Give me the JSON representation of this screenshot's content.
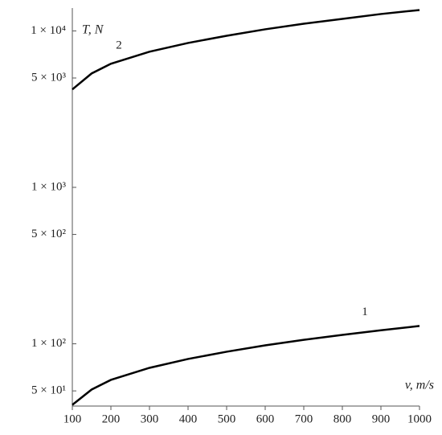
{
  "chart_data": {
    "type": "line",
    "x_label": "v, m/s",
    "y_label": "T, N",
    "x": [
      100,
      150,
      200,
      300,
      400,
      500,
      600,
      700,
      800,
      900,
      1000
    ],
    "series": [
      {
        "name": "1",
        "color": "#000000",
        "values": [
          40.7,
          51,
          58.8,
          70.2,
          80,
          89,
          97.7,
          106,
          114,
          122,
          130
        ]
      },
      {
        "name": "2",
        "color": "#000000",
        "values": [
          4227,
          5346,
          6166,
          7362,
          8375,
          9310,
          10240,
          11110,
          11930,
          12820,
          13600
        ]
      }
    ],
    "xlim": [
      100,
      1000
    ],
    "xticks": [
      100,
      200,
      300,
      400,
      500,
      600,
      700,
      800,
      900,
      1000
    ],
    "ylim": [
      40,
      14000
    ],
    "ylog": true,
    "yticks": [
      {
        "value": 50,
        "label": "5 × 10¹"
      },
      {
        "value": 100,
        "label": "1 × 10²"
      },
      {
        "value": 500,
        "label": "5 × 10²"
      },
      {
        "value": 1000,
        "label": "1 × 10³"
      },
      {
        "value": 5000,
        "label": "5 × 10³"
      },
      {
        "value": 10000,
        "label": "1 × 10⁴"
      }
    ]
  }
}
